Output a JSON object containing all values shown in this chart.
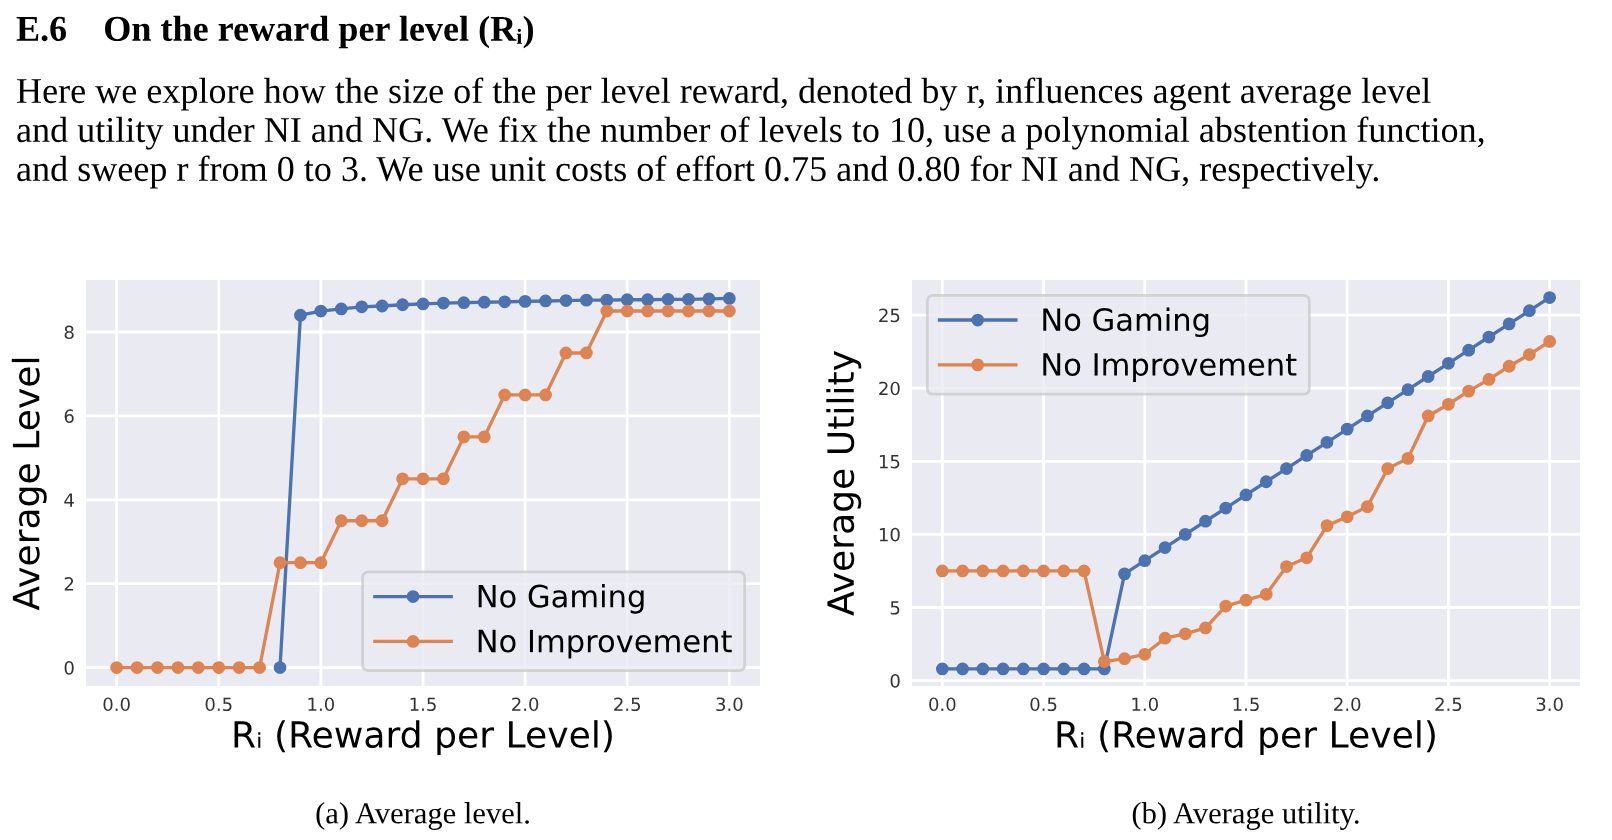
{
  "chart_data": [
    {
      "type": "line",
      "xlabel": "Rᵢ (Reward per Level)",
      "ylabel": "Average Level",
      "annotations": [
        "E.6    On the reward per level (Rᵢ)",
        "Here we explore how the size of the per level reward, denoted by r, influences agent average level",
        "and utility under NI and NG. We fix the number of levels to 10, use a polynomial abstention function,",
        "and sweep r from 0 to 3. We use unit costs of effort 0.75 and 0.80 for NI and NG, respectively.",
        "(a) Average level."
      ],
      "x": [
        0.0,
        0.1,
        0.2,
        0.3,
        0.4,
        0.5,
        0.6,
        0.7,
        0.8,
        0.9,
        1.0,
        1.1,
        1.2,
        1.3,
        1.4,
        1.5,
        1.6,
        1.7,
        1.8,
        1.9,
        2.0,
        2.1,
        2.2,
        2.3,
        2.4,
        2.5,
        2.6,
        2.7,
        2.8,
        2.9,
        3.0
      ],
      "series": [
        {
          "name": "No Gaming",
          "color": "#4c72b0",
          "values": [
            null,
            null,
            null,
            null,
            null,
            null,
            null,
            null,
            0,
            8.4,
            8.5,
            8.55,
            8.6,
            8.62,
            8.65,
            8.67,
            8.69,
            8.7,
            8.71,
            8.72,
            8.73,
            8.74,
            8.75,
            8.76,
            8.76,
            8.77,
            8.77,
            8.78,
            8.78,
            8.79,
            8.8
          ]
        },
        {
          "name": "No Improvement",
          "color": "#dd8452",
          "values": [
            0,
            0,
            0,
            0,
            0,
            0,
            0,
            0,
            2.5,
            2.5,
            2.5,
            3.5,
            3.5,
            3.5,
            4.5,
            4.5,
            4.5,
            5.5,
            5.5,
            6.5,
            6.5,
            6.5,
            7.5,
            7.5,
            8.5,
            8.5,
            8.5,
            8.5,
            8.5,
            8.5,
            8.5
          ]
        }
      ],
      "xlim": [
        -0.15,
        3.15
      ],
      "ylim": [
        -0.44,
        9.24
      ],
      "xticks": [
        {
          "value": 0,
          "label": "0.0"
        },
        0.5,
        {
          "value": 1,
          "label": "1.0"
        },
        1.5,
        {
          "value": 2,
          "label": "2.0"
        },
        2.5,
        {
          "value": 3,
          "label": "3.0"
        }
      ],
      "yticks": [
        0,
        2,
        4,
        6,
        8
      ],
      "grid": true,
      "legend": "bottom right",
      "marker": "circle",
      "line_style": "solid"
    },
    {
      "type": "line",
      "xlabel": "Rᵢ (Reward per Level)",
      "ylabel": "Average Utility",
      "annotations": [
        "(b) Average utility."
      ],
      "x": [
        0.0,
        0.1,
        0.2,
        0.3,
        0.4,
        0.5,
        0.6,
        0.7,
        0.8,
        0.9,
        1.0,
        1.1,
        1.2,
        1.3,
        1.4,
        1.5,
        1.6,
        1.7,
        1.8,
        1.9,
        2.0,
        2.1,
        2.2,
        2.3,
        2.4,
        2.5,
        2.6,
        2.7,
        2.8,
        2.9,
        3.0
      ],
      "series": [
        {
          "name": "No Gaming",
          "color": "#4c72b0",
          "values": [
            0.8,
            0.8,
            0.8,
            0.8,
            0.8,
            0.8,
            0.8,
            0.8,
            0.8,
            7.3,
            8.2,
            9.1,
            10.0,
            10.9,
            11.8,
            12.7,
            13.6,
            14.5,
            15.4,
            16.3,
            17.2,
            18.1,
            19.0,
            19.9,
            20.8,
            21.7,
            22.6,
            23.5,
            24.4,
            25.3,
            26.2
          ]
        },
        {
          "name": "No Improvement",
          "color": "#dd8452",
          "values": [
            7.5,
            7.5,
            7.5,
            7.5,
            7.5,
            7.5,
            7.5,
            7.5,
            1.3,
            1.5,
            1.8,
            2.9,
            3.2,
            3.6,
            5.1,
            5.5,
            5.9,
            7.8,
            8.4,
            10.6,
            11.2,
            11.9,
            14.5,
            15.2,
            18.1,
            18.9,
            19.8,
            20.6,
            21.5,
            22.3,
            23.2
          ]
        }
      ],
      "xlim": [
        -0.15,
        3.15
      ],
      "ylim": [
        -0.37,
        27.4
      ],
      "xticks": [
        {
          "value": 0,
          "label": "0.0"
        },
        0.5,
        {
          "value": 1,
          "label": "1.0"
        },
        1.5,
        {
          "value": 2,
          "label": "2.0"
        },
        2.5,
        {
          "value": 3,
          "label": "3.0"
        }
      ],
      "yticks": [
        0,
        5,
        10,
        15,
        20,
        25
      ],
      "grid": true,
      "legend": "top left",
      "marker": "circle",
      "line_style": "solid"
    }
  ]
}
